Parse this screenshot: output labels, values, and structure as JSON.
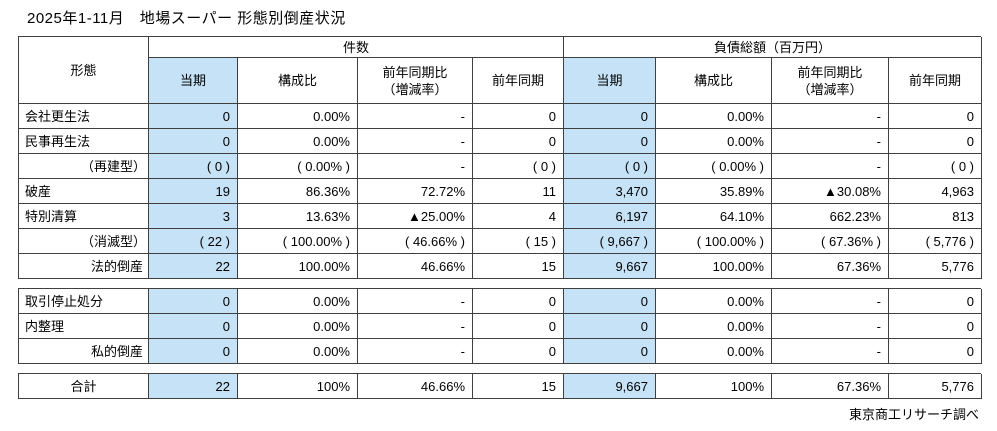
{
  "title": "2025年1-11月　地場スーパー 形態別倒産状況",
  "source_note": "東京商工リサーチ調べ",
  "colors": {
    "highlight": "#c6e2f6",
    "border": "#3f3f3f"
  },
  "table": {
    "corner_label": "形態",
    "groups": [
      {
        "label": "件数"
      },
      {
        "label": "負債総額（百万円）"
      }
    ],
    "columns": [
      {
        "label": "当期",
        "highlight": true
      },
      {
        "label": "構成比"
      },
      {
        "label": "前年同期比",
        "label2": "（増減率）"
      },
      {
        "label": "前年同期"
      }
    ],
    "blocks": [
      {
        "rows": [
          {
            "label": "会社更生法",
            "label_align": "left",
            "values": [
              "0",
              "0.00%",
              "-",
              "0",
              "0",
              "0.00%",
              "-",
              "0"
            ]
          },
          {
            "label": "民事再生法",
            "label_align": "left",
            "values": [
              "0",
              "0.00%",
              "-",
              "0",
              "0",
              "0.00%",
              "-",
              "0"
            ]
          },
          {
            "label": "（再建型）",
            "label_align": "rightp",
            "values": [
              "( 0 )",
              "( 0.00% )",
              "-",
              "( 0 )",
              "( 0 )",
              "( 0.00% )",
              "-",
              "( 0 )"
            ]
          },
          {
            "label": "破産",
            "label_align": "left",
            "values": [
              "19",
              "86.36%",
              "72.72%",
              "11",
              "3,470",
              "35.89%",
              "▲30.08%",
              "4,963"
            ]
          },
          {
            "label": "特別清算",
            "label_align": "left",
            "values": [
              "3",
              "13.63%",
              "▲25.00%",
              "4",
              "6,197",
              "64.10%",
              "662.23%",
              "813"
            ]
          },
          {
            "label": "（消滅型）",
            "label_align": "rightp",
            "values": [
              "( 22 )",
              "( 100.00% )",
              "( 46.66% )",
              "( 15 )",
              "( 9,667 )",
              "( 100.00% )",
              "( 67.36% )",
              "( 5,776 )"
            ]
          },
          {
            "label": "法的倒産",
            "label_align": "right",
            "values": [
              "22",
              "100.00%",
              "46.66%",
              "15",
              "9,667",
              "100.00%",
              "67.36%",
              "5,776"
            ]
          }
        ]
      },
      {
        "rows": [
          {
            "label": "取引停止処分",
            "label_align": "left",
            "values": [
              "0",
              "0.00%",
              "-",
              "0",
              "0",
              "0.00%",
              "-",
              "0"
            ]
          },
          {
            "label": "内整理",
            "label_align": "left",
            "values": [
              "0",
              "0.00%",
              "-",
              "0",
              "0",
              "0.00%",
              "-",
              "0"
            ]
          },
          {
            "label": "私的倒産",
            "label_align": "right",
            "values": [
              "0",
              "0.00%",
              "-",
              "0",
              "0",
              "0.00%",
              "-",
              "0"
            ]
          }
        ]
      },
      {
        "rows": [
          {
            "label": "合計",
            "label_align": "center",
            "values": [
              "22",
              "100%",
              "46.66%",
              "15",
              "9,667",
              "100%",
              "67.36%",
              "5,776"
            ]
          }
        ]
      }
    ]
  }
}
